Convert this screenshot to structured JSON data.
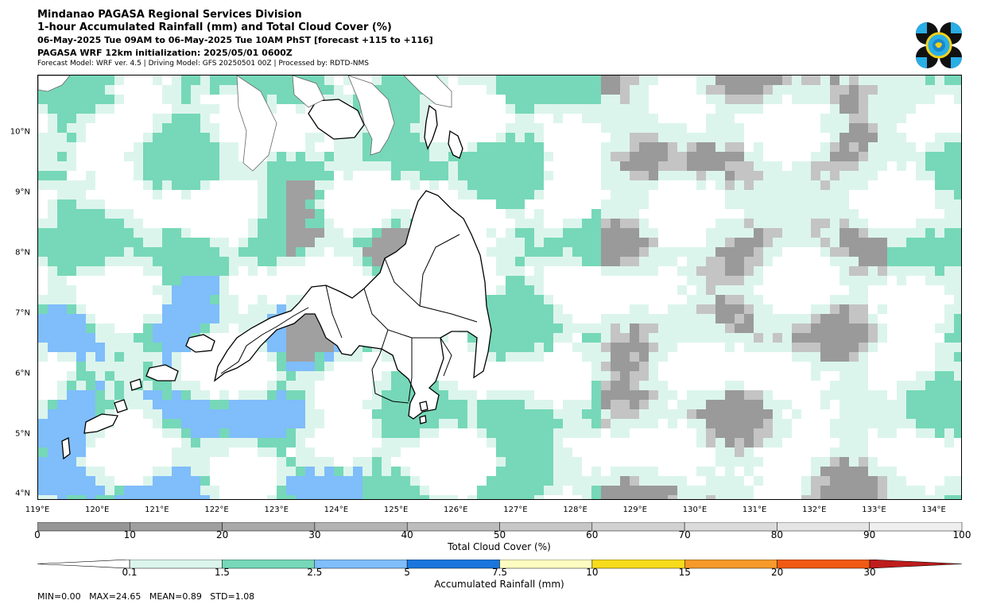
{
  "header": {
    "line1": "Mindanao PAGASA Regional Services Division",
    "line2": "1-hour Accumulated Rainfall (mm) and Total Cloud Cover (%)",
    "line3": "06-May-2025 Tue 09AM to 06-May-2025 Tue 10AM PhST [forecast +115 to +116]",
    "line4": "PAGASA WRF 12km initialization: 2025/05/01 0600Z",
    "line5": "Forecast Model: WRF ver. 4.5 | Driving Model: GFS 20250501 00Z | Processed by: RDTD-NMS"
  },
  "map": {
    "lat_labels": [
      "10°N",
      "9°N",
      "8°N",
      "7°N",
      "6°N",
      "5°N",
      "4°N"
    ],
    "lat_values": [
      10,
      9,
      8,
      7,
      6,
      5,
      4
    ],
    "lon_labels": [
      "119°E",
      "120°E",
      "121°E",
      "122°E",
      "123°E",
      "124°E",
      "125°E",
      "126°E",
      "127°E",
      "128°E",
      "129°E",
      "130°E",
      "131°E",
      "132°E",
      "133°E",
      "134°E"
    ],
    "lon_values": [
      119,
      120,
      121,
      122,
      123,
      124,
      125,
      126,
      127,
      128,
      129,
      130,
      131,
      132,
      133,
      134
    ],
    "extent": {
      "lon_min": 119,
      "lon_max": 134.47,
      "lat_min": 3.9,
      "lat_max": 10.95
    }
  },
  "cloud_bar": {
    "title": "Total Cloud Cover (%)",
    "ticks": [
      "0",
      "10",
      "20",
      "30",
      "40",
      "50",
      "60",
      "70",
      "80",
      "90",
      "100"
    ],
    "colors": [
      "#969696",
      "#9f9f9f",
      "#a9a9a9",
      "#b3b3b3",
      "#bdbdbd",
      "#c7c7c7",
      "#d1d1d1",
      "#dbdbdb",
      "#e5e5e5",
      "#efefef"
    ]
  },
  "rain_bar": {
    "title": "Accumulated Rainfall (mm)",
    "ticks": [
      "0.1",
      "1.5",
      "2.5",
      "5",
      "7.5",
      "10",
      "15",
      "20",
      "30"
    ],
    "colors": [
      "#dcf5ec",
      "#76d8b8",
      "#7fbdfb",
      "#1a76de",
      "#fdfdc1",
      "#f7dc1c",
      "#f59a2a",
      "#f05a14",
      "#bf1c1c"
    ]
  },
  "stats": {
    "text": "MIN=0.00   MAX=24.65   MEAN=0.89   STD=1.08"
  },
  "legend_colors": {
    "rain_01": "#dcf5ec",
    "rain_15": "#76d8b8",
    "rain_25": "#7fbdfb",
    "rain_5": "#1a76de",
    "cloud_gray": "#a6a6a6",
    "coast": "#000000"
  }
}
